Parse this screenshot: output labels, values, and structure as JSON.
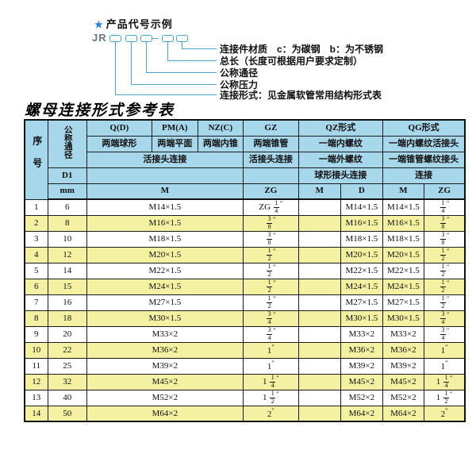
{
  "diagram": {
    "star": "★",
    "title": "产品代号示例",
    "prefix": "JR",
    "code_pattern": "□□□-□□",
    "labels": [
      "连接件材质　c：为碳钢　b：为不锈钢",
      "总长（长度可根据用户要求定制）",
      "公称通径",
      "公称压力",
      "连接形式：见金属软管常用结构形式表"
    ],
    "accent_color": "#4aa6c4",
    "star_color": "#2b7fd4"
  },
  "table": {
    "title": "螺母连接形式参考表",
    "header": {
      "col_serial": "序号",
      "col_dn": "公称通径",
      "d1": "D1",
      "mm": "mm",
      "groups": [
        {
          "code": "Q(D)",
          "desc": "两端球形"
        },
        {
          "code": "PM(A)",
          "desc": "两端平面"
        },
        {
          "code": "NZ(C)",
          "desc": "两端内锥"
        },
        {
          "code": "GZ",
          "desc": "两端锥管"
        }
      ],
      "union_row": "活接头连接",
      "gz_union": "活接头连接",
      "qz": {
        "code": "QZ形式",
        "thread_in": "一端内螺纹",
        "thread_out": "一端外螺纹",
        "conn": "球形接头连接",
        "m": "M",
        "d": "D"
      },
      "qg": {
        "code": "QG形式",
        "thread_in": "一端内螺纹活接头",
        "thread_out": "一端锥管螺纹接头",
        "conn": "连接",
        "m": "M",
        "zg": "ZG"
      },
      "m": "M",
      "zg": "ZG"
    },
    "colors": {
      "header_bg": "#a7d7ea",
      "alt_row_bg": "#f5f1a2",
      "border": "#1c1c1c"
    },
    "rows": [
      {
        "no": "1",
        "dn": "6",
        "m": "M14×1.5",
        "zg": "ZG 1/4″",
        "qz_m": "",
        "qz_d": "M14×1.5",
        "qg_m": "M14×1.5",
        "qg_zg": "1/4″"
      },
      {
        "no": "2",
        "dn": "8",
        "m": "M16×1.5",
        "zg": "3/8″",
        "qz_m": "",
        "qz_d": "M16×1.5",
        "qg_m": "M16×1.5",
        "qg_zg": "3/8″"
      },
      {
        "no": "3",
        "dn": "10",
        "m": "M18×1.5",
        "zg": "3/8″",
        "qz_m": "",
        "qz_d": "M18×1.5",
        "qg_m": "M18×1.5",
        "qg_zg": "3/8″"
      },
      {
        "no": "4",
        "dn": "12",
        "m": "M20×1.5",
        "zg": "1/2″",
        "qz_m": "",
        "qz_d": "M20×1.5",
        "qg_m": "M20×1.5",
        "qg_zg": "1/2″"
      },
      {
        "no": "5",
        "dn": "14",
        "m": "M22×1.5",
        "zg": "1/2″",
        "qz_m": "",
        "qz_d": "M22×1.5",
        "qg_m": "M22×1.5",
        "qg_zg": "1/2″"
      },
      {
        "no": "6",
        "dn": "15",
        "m": "M24×1.5",
        "zg": "1/2″",
        "qz_m": "",
        "qz_d": "M24×1.5",
        "qg_m": "M24×1.5",
        "qg_zg": "1/2″"
      },
      {
        "no": "7",
        "dn": "16",
        "m": "M27×1.5",
        "zg": "1/2″",
        "qz_m": "",
        "qz_d": "M27×1.5",
        "qg_m": "M27×1.5",
        "qg_zg": "1/2″"
      },
      {
        "no": "8",
        "dn": "18",
        "m": "M30×1.5",
        "zg": "3/4″",
        "qz_m": "",
        "qz_d": "M30×1.5",
        "qg_m": "M30×1.5",
        "qg_zg": "3/4″"
      },
      {
        "no": "9",
        "dn": "20",
        "m": "M33×2",
        "zg": "3/4″",
        "qz_m": "",
        "qz_d": "M33×2",
        "qg_m": "M33×2",
        "qg_zg": "3/4″"
      },
      {
        "no": "10",
        "dn": "22",
        "m": "M36×2",
        "zg": "1″",
        "qz_m": "",
        "qz_d": "M36×2",
        "qg_m": "M36×2",
        "qg_zg": "1″"
      },
      {
        "no": "11",
        "dn": "25",
        "m": "M39×2",
        "zg": "1″",
        "qz_m": "",
        "qz_d": "M39×2",
        "qg_m": "M39×2",
        "qg_zg": "1″"
      },
      {
        "no": "12",
        "dn": "32",
        "m": "M45×2",
        "zg": "1 1/4″",
        "qz_m": "",
        "qz_d": "M45×2",
        "qg_m": "M45×2",
        "qg_zg": "1 1/4″"
      },
      {
        "no": "13",
        "dn": "40",
        "m": "M52×2",
        "zg": "1 1/2″",
        "qz_m": "",
        "qz_d": "M52×2",
        "qg_m": "M52×2",
        "qg_zg": "1 1/2″"
      },
      {
        "no": "14",
        "dn": "50",
        "m": "M64×2",
        "zg": "2″",
        "qz_m": "",
        "qz_d": "M64×2",
        "qg_m": "M64×2",
        "qg_zg": "2″"
      }
    ]
  }
}
